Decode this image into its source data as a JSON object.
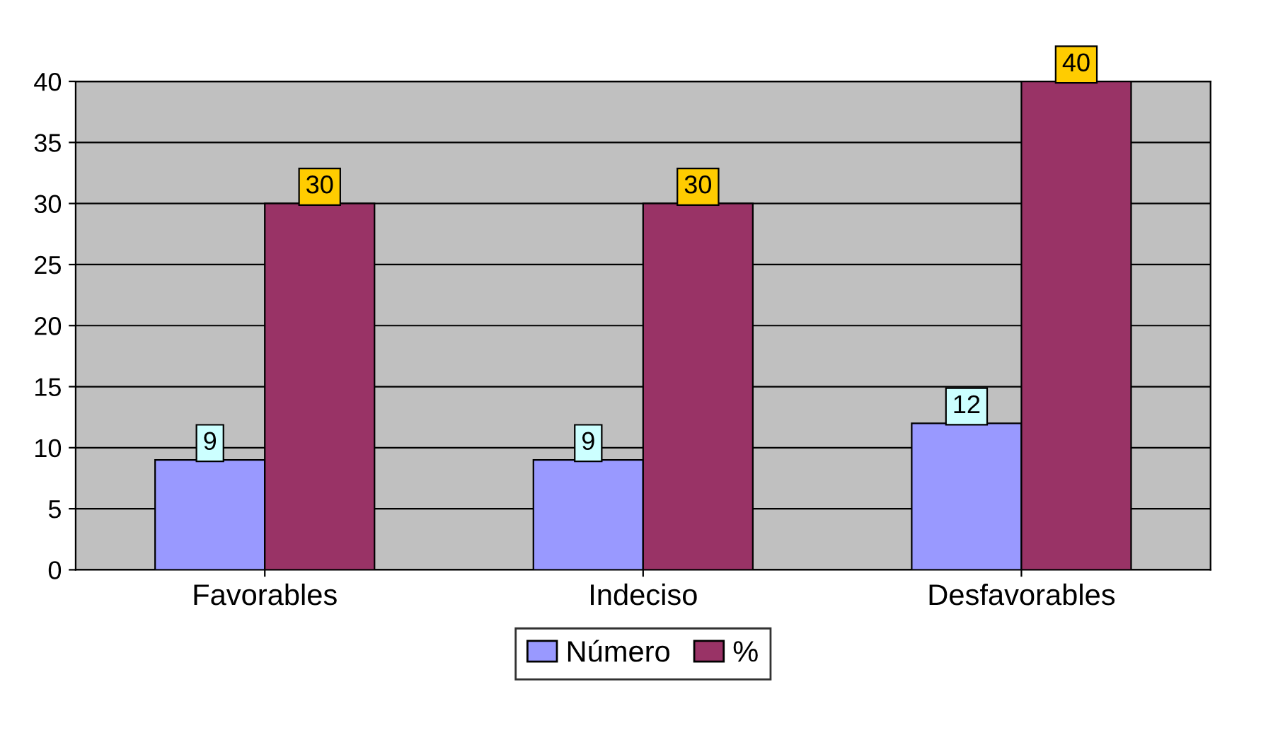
{
  "chart_data": {
    "type": "bar",
    "categories": [
      "Favorables",
      "Indeciso",
      "Desfavorables"
    ],
    "series": [
      {
        "name": "Número",
        "color": "#9999ff",
        "values": [
          9,
          9,
          12
        ]
      },
      {
        "name": "%",
        "color": "#993366",
        "values": [
          30,
          30,
          40
        ]
      }
    ],
    "ylim": [
      0,
      40
    ],
    "yticks": [
      0,
      5,
      10,
      15,
      20,
      25,
      30,
      35,
      40
    ],
    "grid": "y",
    "legend": "bottom",
    "data_labels": true
  }
}
